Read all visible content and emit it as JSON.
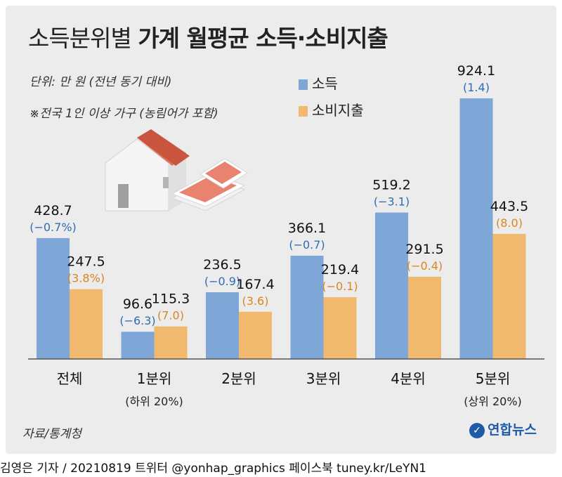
{
  "title_light": "소득분위별",
  "title_bold": "가계 월평균 소득·소비지출",
  "unit_note": "단위: 만 원 (전년 동기 대비)",
  "scope_note": "※전국 1인 이상 가구 (농림어가 포함)",
  "source": "자료/통계청",
  "logo_text": "연합뉴스",
  "footer": "김영은 기자 / 20210819  트위터 @yonhap_graphics  페이스북 tuney.kr/LeYN1",
  "colors": {
    "income": "#7ea6d6",
    "spending": "#f0b96e",
    "income_text": "#2f6db3",
    "spending_text": "#d9861f",
    "panel": "#ececec"
  },
  "chart_data": {
    "type": "bar",
    "categories": [
      "전체",
      "1분위",
      "2분위",
      "3분위",
      "4분위",
      "5분위"
    ],
    "category_sublabels": [
      "",
      "(하위 20%)",
      "",
      "",
      "",
      "(상위 20%)"
    ],
    "series": [
      {
        "name": "소득",
        "values": [
          428.7,
          96.6,
          236.5,
          366.1,
          519.2,
          924.1
        ],
        "changes": [
          "(−0.7%)",
          "(−6.3)",
          "(−0.9)",
          "(−0.7)",
          "(−3.1)",
          "(1.4)"
        ]
      },
      {
        "name": "소비지출",
        "values": [
          247.5,
          115.3,
          167.4,
          219.4,
          291.5,
          443.5
        ],
        "changes": [
          "(3.8%)",
          "(7.0)",
          "(3.6)",
          "(−0.1)",
          "(−0.4)",
          "(8.0)"
        ]
      }
    ],
    "ylim": [
      0,
      1000
    ],
    "grid": false,
    "legend": "top-right"
  }
}
